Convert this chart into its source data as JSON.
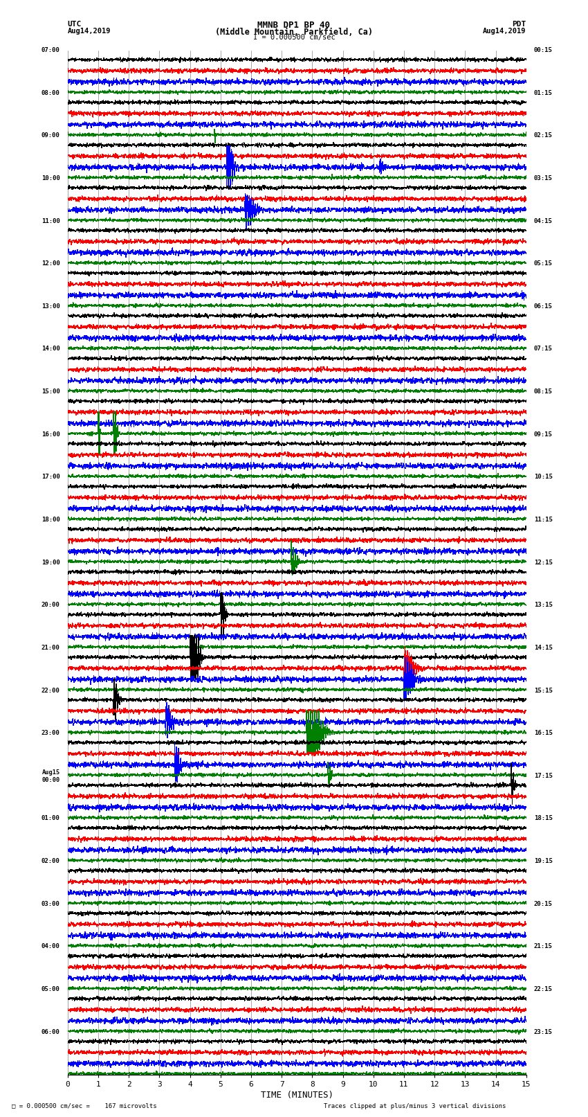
{
  "title_line1": "MMNB DP1 BP 40",
  "title_line2": "(Middle Mountain, Parkfield, Ca)",
  "scale_label": "I = 0.000500 cm/sec",
  "left_label_top": "UTC",
  "left_label_date": "Aug14,2019",
  "right_label_top": "PDT",
  "right_label_date": "Aug14,2019",
  "bottom_note": " = 0.000500 cm/sec =    167 microvolts",
  "bottom_note2": "Traces clipped at plus/minus 3 vertical divisions",
  "xlabel": "TIME (MINUTES)",
  "utc_times": [
    "07:00",
    "08:00",
    "09:00",
    "10:00",
    "11:00",
    "12:00",
    "13:00",
    "14:00",
    "15:00",
    "16:00",
    "17:00",
    "18:00",
    "19:00",
    "20:00",
    "21:00",
    "22:00",
    "23:00",
    "Aug15\n00:00",
    "01:00",
    "02:00",
    "03:00",
    "04:00",
    "05:00",
    "06:00"
  ],
  "pdt_times": [
    "00:15",
    "01:15",
    "02:15",
    "03:15",
    "04:15",
    "05:15",
    "06:15",
    "07:15",
    "08:15",
    "09:15",
    "10:15",
    "11:15",
    "12:15",
    "13:15",
    "14:15",
    "15:15",
    "16:15",
    "17:15",
    "18:15",
    "19:15",
    "20:15",
    "21:15",
    "22:15",
    "23:15"
  ],
  "n_rows": 24,
  "trace_colors": [
    "black",
    "red",
    "blue",
    "green"
  ],
  "bg_color": "white",
  "fig_width": 8.5,
  "fig_height": 16.13
}
